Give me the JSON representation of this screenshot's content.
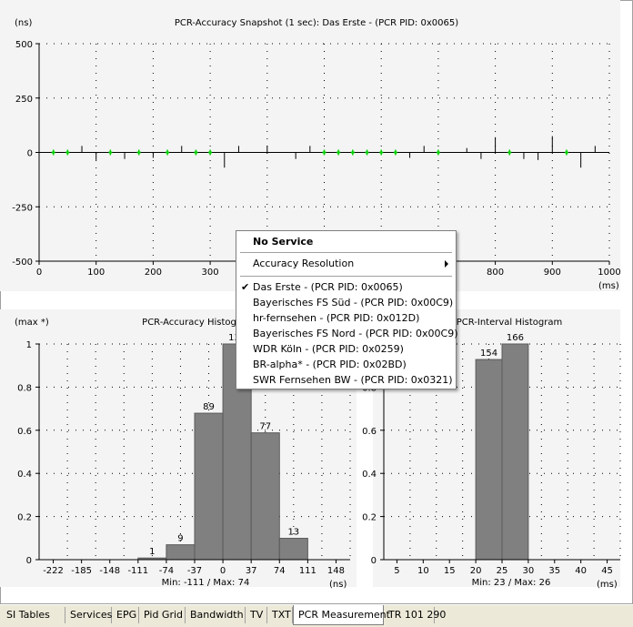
{
  "colors": {
    "bar": "#808080",
    "dot": "#000000",
    "green": "#00d000",
    "axis": "#000000"
  },
  "chart_data": [
    {
      "id": "snapshot",
      "type": "scatter",
      "title": "PCR-Accuracy Snapshot (1 sec): Das Erste - (PCR PID: 0x0065)",
      "ylabel": "(ns)",
      "xlabel": "(ms)",
      "xlim": [
        0,
        1000
      ],
      "ylim": [
        -500,
        500
      ],
      "xticks": [
        0,
        100,
        200,
        300,
        400,
        500,
        600,
        700,
        800,
        900,
        1000
      ],
      "yticks": [
        500,
        250,
        0,
        -250,
        -500
      ],
      "x_tick_labels": [
        "0",
        "100",
        "200",
        "300",
        "400",
        "500",
        "600",
        "700",
        "800",
        "900",
        "1000"
      ],
      "y_tick_labels": [
        "500",
        "250",
        "0",
        "-250",
        "-500"
      ],
      "green_points": [
        25,
        50,
        125,
        175,
        225,
        275,
        300,
        500,
        525,
        550,
        575,
        600,
        625,
        700,
        825,
        925
      ],
      "spikes": [
        {
          "x": 75,
          "y": 30
        },
        {
          "x": 100,
          "y": -35
        },
        {
          "x": 150,
          "y": -30
        },
        {
          "x": 200,
          "y": -25
        },
        {
          "x": 250,
          "y": 30
        },
        {
          "x": 325,
          "y": -70
        },
        {
          "x": 350,
          "y": 30
        },
        {
          "x": 400,
          "y": 30
        },
        {
          "x": 450,
          "y": -30
        },
        {
          "x": 475,
          "y": 30
        },
        {
          "x": 650,
          "y": -25
        },
        {
          "x": 675,
          "y": 30
        },
        {
          "x": 750,
          "y": 20
        },
        {
          "x": 775,
          "y": -30
        },
        {
          "x": 800,
          "y": 70
        },
        {
          "x": 850,
          "y": -30
        },
        {
          "x": 875,
          "y": -35
        },
        {
          "x": 900,
          "y": 75
        },
        {
          "x": 950,
          "y": -70
        },
        {
          "x": 975,
          "y": 30
        }
      ]
    },
    {
      "id": "accuracy-histogram",
      "type": "bar",
      "title": "PCR-Accuracy Histogram",
      "ylabel": "(max *)",
      "xlabel": "(ns)",
      "ylim": [
        0,
        1
      ],
      "yticks": [
        0,
        0.2,
        0.4,
        0.6,
        0.8,
        1
      ],
      "y_tick_labels": [
        "0",
        "0.2",
        "0.4",
        "0.6",
        "0.8",
        "1"
      ],
      "categories": [
        "-222",
        "-185",
        "-148",
        "-111",
        "-74",
        "-37",
        "0",
        "37",
        "74",
        "111",
        "148"
      ],
      "bars": [
        {
          "index": 3,
          "value": 0.0076,
          "label": "1"
        },
        {
          "index": 4,
          "value": 0.069,
          "label": "9"
        },
        {
          "index": 5,
          "value": 0.679,
          "label": "89"
        },
        {
          "index": 6,
          "value": 1.0,
          "label": "131"
        },
        {
          "index": 7,
          "value": 0.588,
          "label": "77"
        },
        {
          "index": 8,
          "value": 0.099,
          "label": "13"
        }
      ],
      "summary": "Min: -111 / Max: 74"
    },
    {
      "id": "interval-histogram",
      "type": "bar",
      "title": "PCR-Interval Histogram",
      "ylabel": "",
      "xlabel": "(ms)",
      "ylim": [
        0,
        1
      ],
      "yticks": [
        0,
        0.2,
        0.4,
        0.6,
        0.8,
        1
      ],
      "y_tick_labels": [
        "0",
        "0.2",
        "0.4",
        "0.6",
        "0.8",
        "1"
      ],
      "categories": [
        "5",
        "10",
        "15",
        "20",
        "25",
        "30",
        "35",
        "40",
        "45"
      ],
      "bars": [
        {
          "index": 3,
          "value": 0.928,
          "label": "154"
        },
        {
          "index": 4,
          "value": 1.0,
          "label": "166"
        }
      ],
      "summary": "Min: 23 / Max: 26"
    }
  ],
  "context_menu": {
    "header": "No Service",
    "accuracy_resolution": "Accuracy Resolution",
    "checkmark": "✔",
    "services": [
      {
        "label": "Das Erste - (PCR PID: 0x0065)",
        "checked": true
      },
      {
        "label": "Bayerisches FS Süd - (PCR PID: 0x00C9)",
        "checked": false
      },
      {
        "label": "hr-fernsehen - (PCR PID: 0x012D)",
        "checked": false
      },
      {
        "label": "Bayerisches FS Nord - (PCR PID: 0x00C9)",
        "checked": false
      },
      {
        "label": "WDR Köln - (PCR PID: 0x0259)",
        "checked": false
      },
      {
        "label": "BR-alpha* - (PCR PID: 0x02BD)",
        "checked": false
      },
      {
        "label": "SWR Fernsehen BW - (PCR PID: 0x0321)",
        "checked": false
      }
    ]
  },
  "tabs": [
    {
      "label": "SI Tables",
      "active": false
    },
    {
      "label": "Services",
      "active": false
    },
    {
      "label": "EPG",
      "active": false
    },
    {
      "label": "Pid Grid",
      "active": false
    },
    {
      "label": "Bandwidth",
      "active": false
    },
    {
      "label": "TV",
      "active": false
    },
    {
      "label": "TXT",
      "active": false
    },
    {
      "label": "PCR Measurement",
      "active": true
    },
    {
      "label": "TR 101 290",
      "active": false
    }
  ]
}
